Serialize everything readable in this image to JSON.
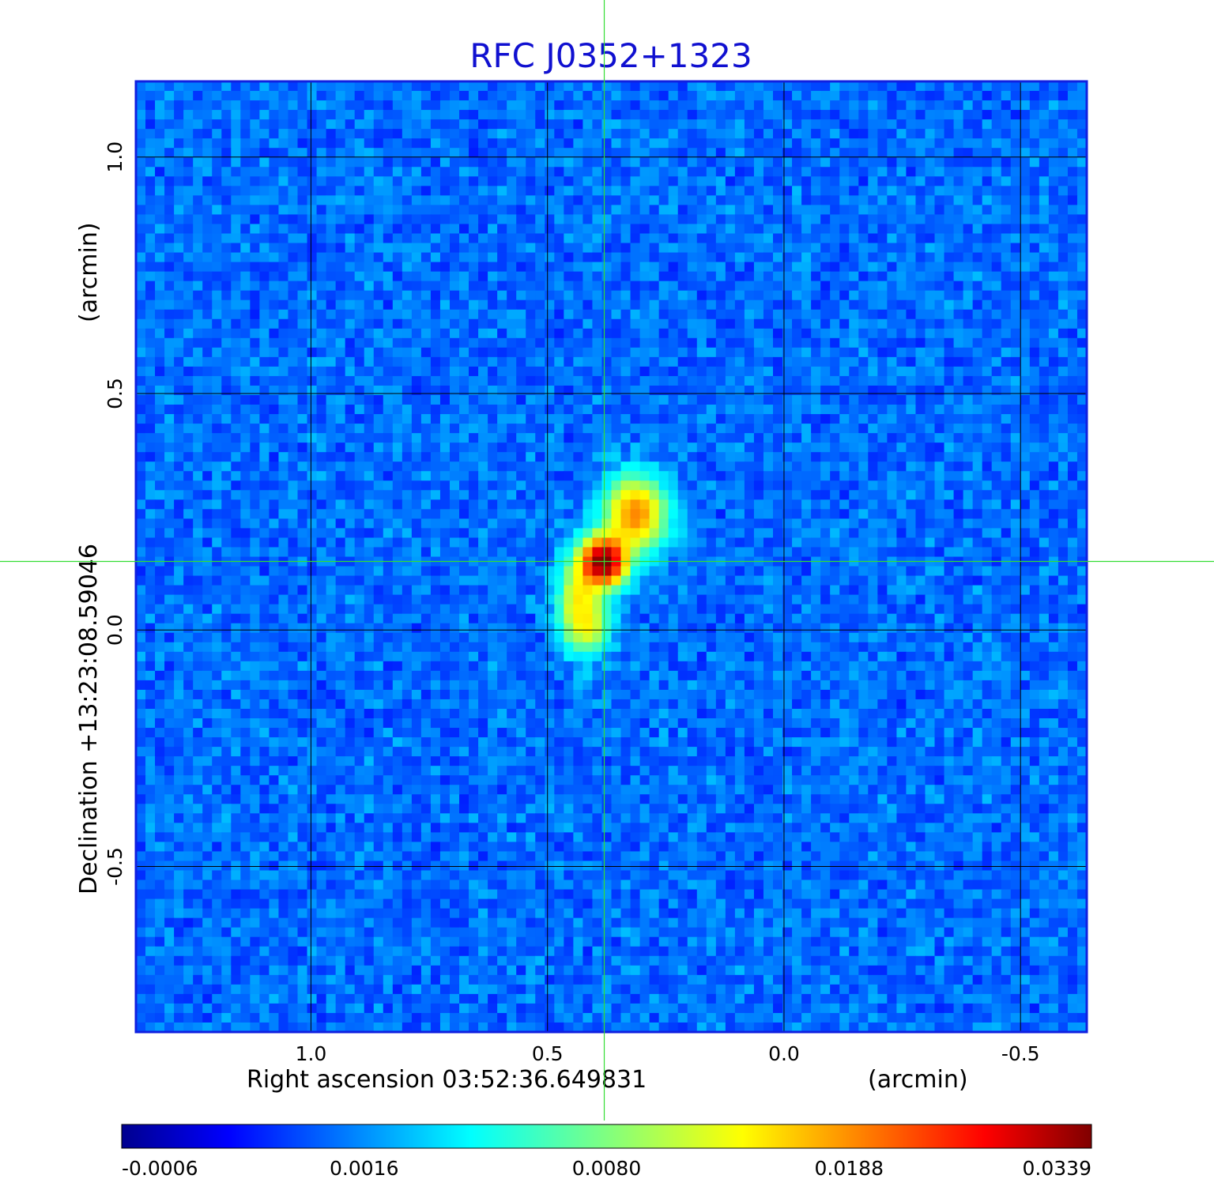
{
  "chart_data": {
    "type": "heatmap",
    "title": "RFC J0352+1323",
    "xlabel": "Right ascension  03:52:36.649831",
    "xunit": "(arcmin)",
    "ylabel": "Declination  +13:23:08.59046",
    "yunit": "(arcmin)",
    "x_ticks": [
      "1.0",
      "0.5",
      "0.0",
      "-0.5"
    ],
    "y_ticks": [
      "1.0",
      "0.5",
      "0.0",
      "-0.5"
    ],
    "xlim": [
      1.37,
      -0.64
    ],
    "ylim": [
      -0.85,
      1.16
    ],
    "x_reversed": true,
    "grid": true,
    "crosshair": {
      "x": 0.38,
      "y": 0.145
    },
    "colormap": "jet",
    "colorbar": {
      "ticks": [
        "-0.0006",
        "0.0016",
        "0.0080",
        "0.0188",
        "0.0339"
      ],
      "range": [
        -0.0006,
        0.0339
      ]
    },
    "background_level": 0.0006,
    "sources": [
      {
        "x": 0.38,
        "y": 0.145,
        "peak": 0.0339,
        "sigma_x": 0.03,
        "sigma_y": 0.032
      },
      {
        "x": 0.315,
        "y": 0.245,
        "peak": 0.017,
        "sigma_x": 0.04,
        "sigma_y": 0.048
      },
      {
        "x": 0.43,
        "y": 0.06,
        "peak": 0.011,
        "sigma_x": 0.03,
        "sigma_y": 0.06
      },
      {
        "x": 0.41,
        "y": 0.0,
        "peak": 0.005,
        "sigma_x": 0.03,
        "sigma_y": 0.03
      }
    ],
    "colors": {
      "title": "#1010d0",
      "crosshair": "#33dd33",
      "grid": "#000000",
      "frame": "#1020e0"
    }
  }
}
